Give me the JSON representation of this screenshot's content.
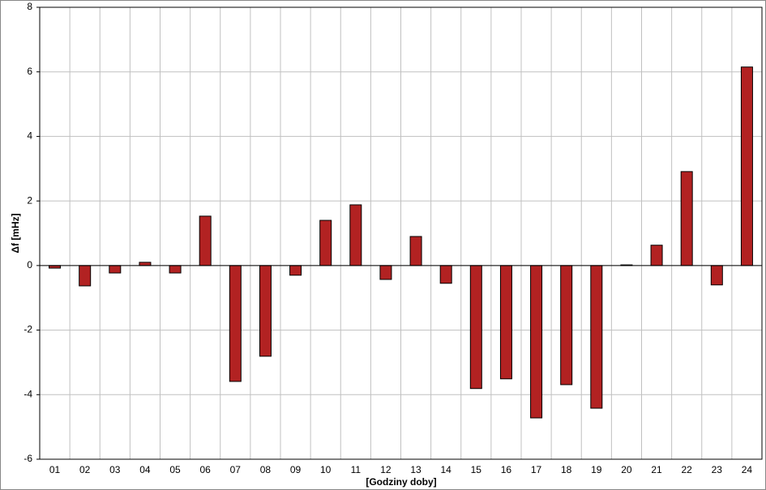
{
  "chart_data": {
    "type": "bar",
    "xlabel": "[Godziny doby]",
    "ylabel": "Δf [mHz]",
    "categories": [
      "01",
      "02",
      "03",
      "04",
      "05",
      "06",
      "07",
      "08",
      "09",
      "10",
      "11",
      "12",
      "13",
      "14",
      "15",
      "16",
      "17",
      "18",
      "19",
      "20",
      "21",
      "22",
      "23",
      "24"
    ],
    "values": [
      -0.08,
      -0.63,
      -0.23,
      0.1,
      -0.23,
      1.53,
      -3.59,
      -2.81,
      -0.3,
      1.4,
      1.88,
      -0.43,
      0.9,
      -0.55,
      -3.81,
      -3.51,
      -4.72,
      -3.69,
      -4.42,
      0.02,
      0.63,
      2.91,
      -0.6,
      6.15
    ],
    "color": "#b22222",
    "ylim": [
      -6,
      8
    ],
    "yticks": [
      -6,
      -4,
      -2,
      0,
      2,
      4,
      6,
      8
    ],
    "grid": true
  }
}
